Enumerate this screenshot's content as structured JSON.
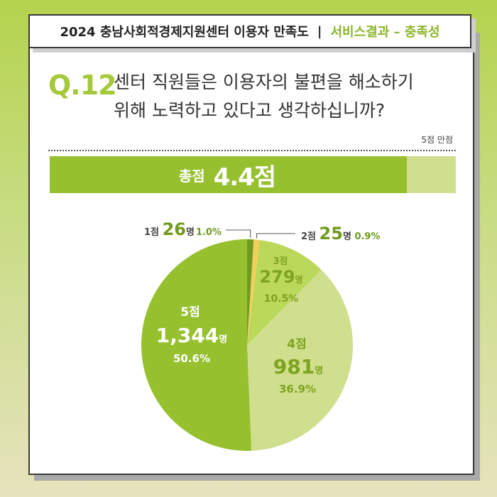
{
  "header": {
    "title": "2024 충남사회적경제지원센터 이용자 만족도",
    "separator": "|",
    "subtitle": "서비스결과 – 충족성"
  },
  "question": {
    "number": "Q.12",
    "line1": "센터 직원들은 이용자의 불편을 해소하기",
    "line2": "위해 노력하고 있다고 생각하십니까?"
  },
  "score": {
    "note": "5점 만점",
    "label": "총점",
    "value_text": "4.4점",
    "value": 4.4,
    "max": 5
  },
  "colors": {
    "s1": "#6f9a1f",
    "s2": "#f2cf5a",
    "s3": "#bcd85a",
    "s4": "#cfdf8e",
    "s5": "#96c02e",
    "text_dark": "#444444",
    "text_green": "#8bb52a"
  },
  "chart_data": {
    "type": "pie",
    "start": "top",
    "direction": "clockwise",
    "slices": [
      {
        "label": "1점",
        "count": 26,
        "count_text": "26",
        "unit": "명",
        "percent": 1.0,
        "percent_text": "1.0%"
      },
      {
        "label": "2점",
        "count": 25,
        "count_text": "25",
        "unit": "명",
        "percent": 0.9,
        "percent_text": "0.9%"
      },
      {
        "label": "3점",
        "count": 279,
        "count_text": "279",
        "unit": "명",
        "percent": 10.5,
        "percent_text": "10.5%"
      },
      {
        "label": "4점",
        "count": 981,
        "count_text": "981",
        "unit": "명",
        "percent": 36.9,
        "percent_text": "36.9%"
      },
      {
        "label": "5점",
        "count": 1344,
        "count_text": "1,344",
        "unit": "명",
        "percent": 50.6,
        "percent_text": "50.6%"
      }
    ]
  }
}
